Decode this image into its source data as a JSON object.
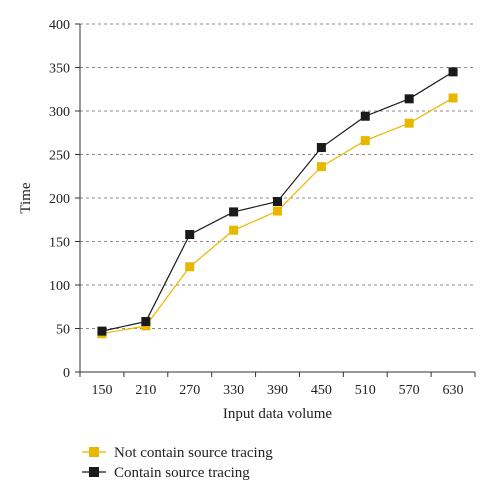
{
  "chart_data": {
    "type": "line",
    "title": "",
    "xlabel": "Input data volume",
    "ylabel": "Time",
    "x": [
      150,
      210,
      270,
      330,
      390,
      450,
      510,
      570,
      630
    ],
    "ylim": [
      0,
      400
    ],
    "yticks": [
      0,
      50,
      100,
      150,
      200,
      250,
      300,
      350,
      400
    ],
    "grid": "horizontal dashed",
    "legend_position": "bottom-left",
    "series": [
      {
        "name": "Not contain source tracing",
        "color": "#e8b800",
        "values": [
          44,
          53,
          121,
          163,
          185,
          236,
          266,
          286,
          315
        ]
      },
      {
        "name": "Contain source tracing",
        "color": "#1a1a1a",
        "values": [
          47,
          58,
          158,
          184,
          196,
          258,
          294,
          314,
          345
        ]
      }
    ]
  }
}
